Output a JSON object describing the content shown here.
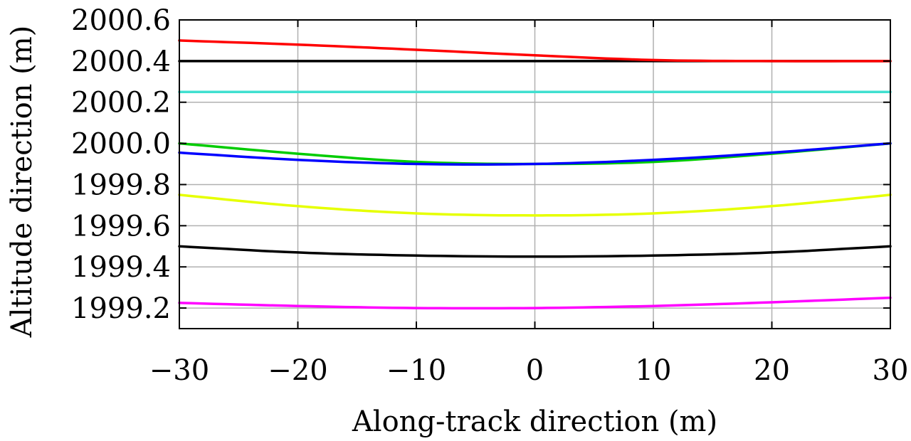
{
  "chart_data": {
    "type": "line",
    "title": "",
    "xlabel": "Along-track direction (m)",
    "ylabel": "Altitude direction (m)",
    "xlim": [
      -30,
      30
    ],
    "ylim": [
      1999.1,
      2000.6
    ],
    "x_ticks": [
      -30,
      -20,
      -10,
      0,
      10,
      20,
      30
    ],
    "x_tick_labels": [
      "−30",
      "−20",
      "−10",
      "0",
      "10",
      "20",
      "30"
    ],
    "y_ticks": [
      1999.2,
      1999.4,
      1999.6,
      1999.8,
      2000.0,
      2000.2,
      2000.4,
      2000.6
    ],
    "y_tick_labels": [
      "1999.2",
      "1999.4",
      "1999.6",
      "1999.8",
      "2000.0",
      "2000.2",
      "2000.4",
      "2000.6"
    ],
    "grid": true,
    "legend": "none",
    "x": [
      -30,
      -20,
      -10,
      0,
      10,
      20,
      30
    ],
    "series": [
      {
        "color": "#000000",
        "values": [
          2000.4,
          2000.4,
          2000.4,
          2000.4,
          2000.4,
          2000.4,
          2000.4
        ]
      },
      {
        "color": "#ff0000",
        "values": [
          2000.5,
          2000.48,
          2000.455,
          2000.428,
          2000.405,
          2000.4,
          2000.4
        ]
      },
      {
        "color": "#40e0d0",
        "values": [
          2000.25,
          2000.25,
          2000.25,
          2000.25,
          2000.25,
          2000.25,
          2000.25
        ]
      },
      {
        "color": "#00cc00",
        "values": [
          2000.0,
          1999.95,
          1999.91,
          1999.9,
          1999.91,
          1999.95,
          2000.0
        ]
      },
      {
        "color": "#0000ff",
        "values": [
          1999.955,
          1999.92,
          1999.9,
          1999.9,
          1999.92,
          1999.955,
          2000.0
        ]
      },
      {
        "color": "#e6ff00",
        "values": [
          1999.75,
          1999.695,
          1999.66,
          1999.65,
          1999.66,
          1999.695,
          1999.75
        ]
      },
      {
        "color": "#000000",
        "values": [
          1999.5,
          1999.47,
          1999.455,
          1999.45,
          1999.455,
          1999.47,
          1999.5
        ]
      },
      {
        "color": "#ff00ff",
        "values": [
          1999.225,
          1999.21,
          1999.2,
          1999.2,
          1999.21,
          1999.228,
          1999.25
        ]
      }
    ]
  }
}
